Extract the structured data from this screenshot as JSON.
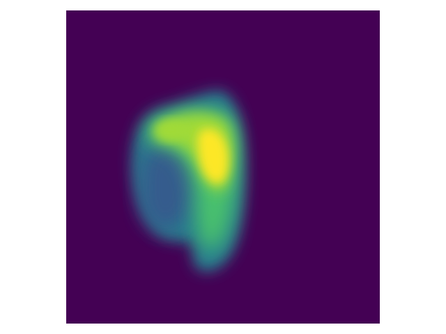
{
  "image": {
    "colormap": "viridis",
    "colors": {
      "background": "#440154",
      "purple": "#46337e",
      "blue": "#365c8d",
      "teal": "#277f8e",
      "green": "#1fa187",
      "light_green": "#4ac16d",
      "lime": "#a0da39",
      "yellow": "#fde725",
      "page_background": "#ffffff"
    },
    "axes_visible": false
  }
}
